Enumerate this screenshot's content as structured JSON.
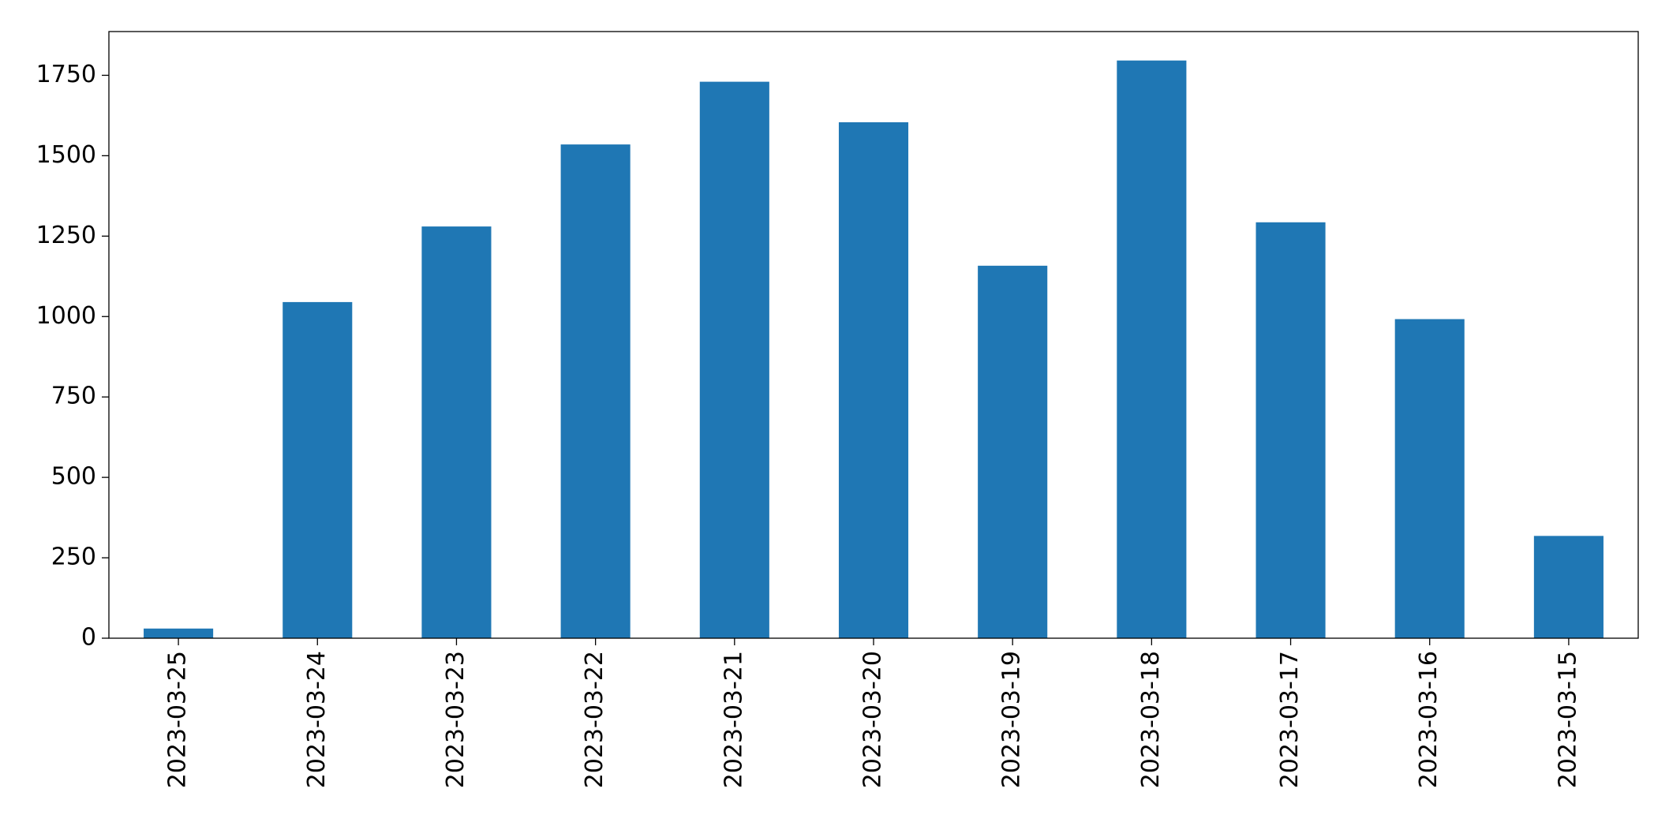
{
  "chart_data": {
    "type": "bar",
    "categories": [
      "2023-03-25",
      "2023-03-24",
      "2023-03-23",
      "2023-03-22",
      "2023-03-21",
      "2023-03-20",
      "2023-03-19",
      "2023-03-18",
      "2023-03-17",
      "2023-03-16",
      "2023-03-15"
    ],
    "values": [
      30,
      1045,
      1280,
      1535,
      1730,
      1604,
      1158,
      1796,
      1293,
      992,
      318
    ],
    "color": "#1f77b4",
    "ylim": [
      0,
      1886
    ],
    "yticks": [
      0,
      250,
      500,
      750,
      1000,
      1250,
      1500,
      1750
    ],
    "grid": false
  }
}
